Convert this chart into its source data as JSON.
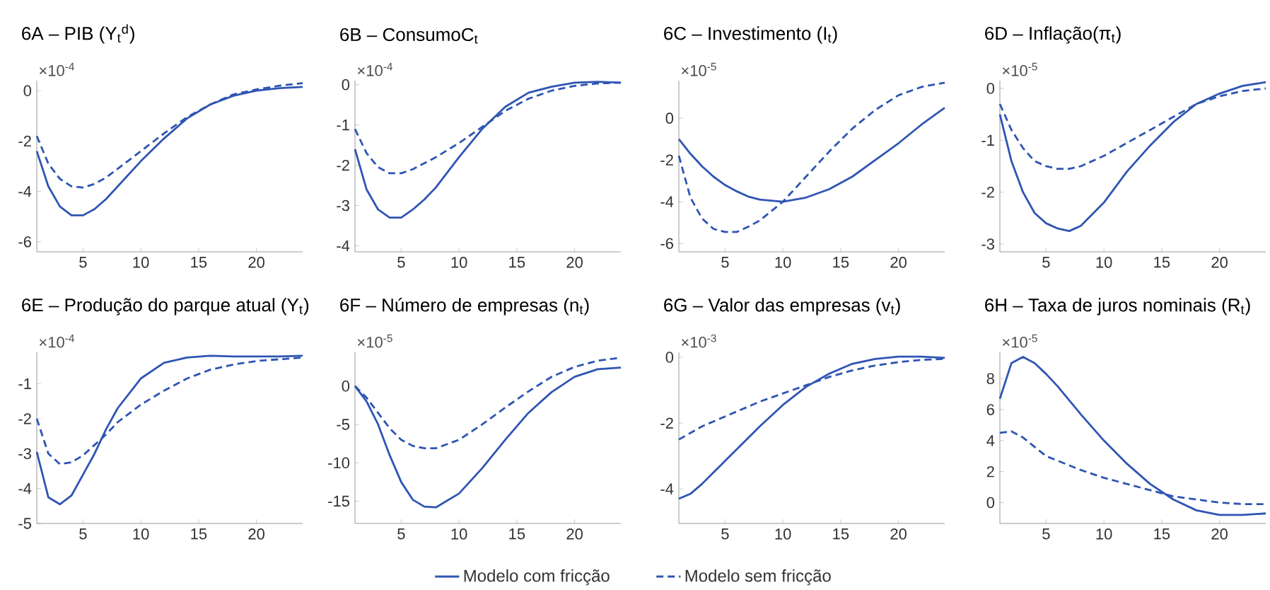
{
  "chart_data": [
    {
      "type": "line",
      "title": "6A – PIB (Y$_{t}$$^{d}$)",
      "annotations": [
        "×10$^{-4}$"
      ],
      "x": [
        1,
        2,
        3,
        4,
        5,
        6,
        7,
        8,
        10,
        12,
        14,
        16,
        18,
        20,
        22,
        24
      ],
      "xlim": [
        1,
        24
      ],
      "xticks": [
        5,
        10,
        15,
        20
      ],
      "ylim": [
        -6.4,
        0.4
      ],
      "yticks": [
        -6,
        -4,
        -2,
        0
      ],
      "series": [
        {
          "color": "#2f55b3",
          "line_style": "solid",
          "values": [
            -2.4,
            -3.8,
            -4.6,
            -4.95,
            -4.95,
            -4.7,
            -4.3,
            -3.8,
            -2.8,
            -1.9,
            -1.1,
            -0.55,
            -0.2,
            0.0,
            0.1,
            0.15
          ]
        },
        {
          "color": "#2f55b3",
          "line_style": "dashed",
          "values": [
            -1.8,
            -2.9,
            -3.5,
            -3.8,
            -3.85,
            -3.7,
            -3.45,
            -3.1,
            -2.4,
            -1.7,
            -1.05,
            -0.55,
            -0.15,
            0.05,
            0.2,
            0.3
          ]
        }
      ]
    },
    {
      "type": "line",
      "title": "6B – ConsumoC$_{t}$",
      "annotations": [
        "×10$^{-4}$"
      ],
      "x": [
        1,
        2,
        3,
        4,
        5,
        6,
        7,
        8,
        10,
        12,
        14,
        16,
        18,
        20,
        22,
        24
      ],
      "xlim": [
        1,
        24
      ],
      "xticks": [
        5,
        10,
        15,
        20
      ],
      "ylim": [
        -4.15,
        0.1
      ],
      "yticks": [
        -4,
        -3,
        -2,
        -1,
        0
      ],
      "series": [
        {
          "color": "#2f55b3",
          "line_style": "solid",
          "values": [
            -1.6,
            -2.6,
            -3.1,
            -3.3,
            -3.3,
            -3.1,
            -2.85,
            -2.55,
            -1.8,
            -1.1,
            -0.55,
            -0.2,
            -0.05,
            0.05,
            0.07,
            0.05
          ]
        },
        {
          "color": "#2f55b3",
          "line_style": "dashed",
          "values": [
            -1.1,
            -1.7,
            -2.05,
            -2.2,
            -2.2,
            -2.1,
            -1.95,
            -1.8,
            -1.45,
            -1.05,
            -0.65,
            -0.35,
            -0.15,
            -0.03,
            0.03,
            0.05
          ]
        }
      ]
    },
    {
      "type": "line",
      "title": "6C – Investimento (I$_{t}$)",
      "annotations": [
        "×10$^{-5}$"
      ],
      "x": [
        1,
        2,
        3,
        4,
        5,
        6,
        7,
        8,
        10,
        12,
        14,
        16,
        18,
        20,
        22,
        24
      ],
      "xlim": [
        1,
        24
      ],
      "xticks": [
        5,
        10,
        15,
        20
      ],
      "ylim": [
        -6.4,
        1.8
      ],
      "yticks": [
        -6,
        -4,
        -2,
        0
      ],
      "series": [
        {
          "color": "#2f55b3",
          "line_style": "solid",
          "values": [
            -1.0,
            -1.7,
            -2.3,
            -2.8,
            -3.2,
            -3.5,
            -3.75,
            -3.9,
            -4.0,
            -3.8,
            -3.4,
            -2.8,
            -2.0,
            -1.2,
            -0.3,
            0.5
          ]
        },
        {
          "color": "#2f55b3",
          "line_style": "dashed",
          "values": [
            -1.8,
            -3.8,
            -4.8,
            -5.3,
            -5.45,
            -5.45,
            -5.2,
            -4.9,
            -4.0,
            -2.8,
            -1.6,
            -0.5,
            0.4,
            1.1,
            1.5,
            1.7
          ]
        }
      ]
    },
    {
      "type": "line",
      "title": "6D – Inflação(π$_{t}$)",
      "annotations": [
        "×10$^{-5}$"
      ],
      "x": [
        1,
        2,
        3,
        4,
        5,
        6,
        7,
        8,
        10,
        12,
        14,
        16,
        18,
        20,
        22,
        24
      ],
      "xlim": [
        1,
        24
      ],
      "xticks": [
        5,
        10,
        15,
        20
      ],
      "ylim": [
        -3.15,
        0.15
      ],
      "yticks": [
        -3,
        -2,
        -1,
        0
      ],
      "series": [
        {
          "color": "#2f55b3",
          "line_style": "solid",
          "values": [
            -0.5,
            -1.4,
            -2.0,
            -2.4,
            -2.6,
            -2.7,
            -2.75,
            -2.65,
            -2.2,
            -1.6,
            -1.1,
            -0.65,
            -0.3,
            -0.1,
            0.05,
            0.12
          ]
        },
        {
          "color": "#2f55b3",
          "line_style": "dashed",
          "values": [
            -0.3,
            -0.8,
            -1.15,
            -1.4,
            -1.5,
            -1.55,
            -1.55,
            -1.5,
            -1.3,
            -1.05,
            -0.8,
            -0.55,
            -0.3,
            -0.15,
            -0.05,
            0.0
          ]
        }
      ]
    },
    {
      "type": "line",
      "title": "6E – Produção do parque atual (Y$_{t}$)",
      "annotations": [
        "×10$^{-4}$"
      ],
      "x": [
        1,
        2,
        3,
        4,
        5,
        6,
        7,
        8,
        10,
        12,
        14,
        16,
        18,
        20,
        22,
        24
      ],
      "xlim": [
        1,
        24
      ],
      "xticks": [
        5,
        10,
        15,
        20
      ],
      "ylim": [
        -5,
        -0.1
      ],
      "yticks": [
        -5,
        -4,
        -3,
        -2,
        -1
      ],
      "series": [
        {
          "color": "#2f55b3",
          "line_style": "solid",
          "values": [
            -2.95,
            -4.25,
            -4.45,
            -4.2,
            -3.6,
            -3.0,
            -2.3,
            -1.7,
            -0.85,
            -0.4,
            -0.25,
            -0.2,
            -0.22,
            -0.22,
            -0.22,
            -0.2
          ]
        },
        {
          "color": "#2f55b3",
          "line_style": "dashed",
          "values": [
            -2.0,
            -3.0,
            -3.3,
            -3.25,
            -3.05,
            -2.75,
            -2.45,
            -2.1,
            -1.6,
            -1.2,
            -0.85,
            -0.6,
            -0.45,
            -0.35,
            -0.3,
            -0.25
          ]
        }
      ]
    },
    {
      "type": "line",
      "title": "6F – Número de empresas (n$_{t}$)",
      "annotations": [
        "×10$^{-5}$"
      ],
      "x": [
        1,
        2,
        3,
        4,
        5,
        6,
        7,
        8,
        10,
        12,
        14,
        16,
        18,
        20,
        22,
        24
      ],
      "xlim": [
        1,
        24
      ],
      "xticks": [
        5,
        10,
        15,
        20
      ],
      "ylim": [
        -17.9,
        4.4
      ],
      "yticks": [
        -15,
        -10,
        -5,
        0
      ],
      "legend": "bottom",
      "series": [
        {
          "name": "Modelo com fricção",
          "color": "#2f55b3",
          "line_style": "solid",
          "values": [
            0,
            -2,
            -5,
            -9,
            -12.5,
            -14.8,
            -15.7,
            -15.8,
            -14,
            -10.7,
            -7,
            -3.5,
            -0.8,
            1.2,
            2.2,
            2.4
          ]
        },
        {
          "name": "Modelo sem fricção",
          "color": "#2f55b3",
          "line_style": "dashed",
          "values": [
            0,
            -1.5,
            -3.5,
            -5.5,
            -7,
            -7.8,
            -8.1,
            -8.1,
            -7,
            -5,
            -2.8,
            -0.7,
            1.2,
            2.5,
            3.3,
            3.7
          ]
        }
      ]
    },
    {
      "type": "line",
      "title": "6G – Valor das empresas (v$_{t}$)",
      "annotations": [
        "×10$^{-3}$"
      ],
      "x": [
        1,
        2,
        3,
        4,
        5,
        6,
        7,
        8,
        10,
        12,
        14,
        16,
        18,
        20,
        22,
        24
      ],
      "xlim": [
        1,
        24
      ],
      "xticks": [
        5,
        10,
        15,
        20
      ],
      "ylim": [
        -5.05,
        0.15
      ],
      "yticks": [
        -4,
        -2,
        0
      ],
      "series": [
        {
          "color": "#2f55b3",
          "line_style": "solid",
          "values": [
            -4.3,
            -4.15,
            -3.85,
            -3.5,
            -3.15,
            -2.8,
            -2.45,
            -2.1,
            -1.45,
            -0.9,
            -0.5,
            -0.2,
            -0.05,
            0.02,
            0.02,
            -0.02
          ]
        },
        {
          "color": "#2f55b3",
          "line_style": "dashed",
          "values": [
            -2.5,
            -2.3,
            -2.1,
            -1.95,
            -1.8,
            -1.65,
            -1.5,
            -1.35,
            -1.1,
            -0.85,
            -0.6,
            -0.4,
            -0.25,
            -0.15,
            -0.08,
            -0.05
          ]
        }
      ]
    },
    {
      "type": "line",
      "title": "6H – Taxa de juros nominais (R$_{t}$)",
      "annotations": [
        "×10$^{-5}$"
      ],
      "x": [
        1,
        2,
        3,
        4,
        5,
        6,
        7,
        8,
        10,
        12,
        14,
        16,
        18,
        20,
        22,
        24
      ],
      "xlim": [
        1,
        24
      ],
      "xticks": [
        5,
        10,
        15,
        20
      ],
      "ylim": [
        -1.35,
        9.7
      ],
      "yticks": [
        0,
        2,
        4,
        6,
        8
      ],
      "series": [
        {
          "color": "#2f55b3",
          "line_style": "solid",
          "values": [
            6.7,
            9.0,
            9.4,
            9.0,
            8.3,
            7.5,
            6.6,
            5.7,
            4.0,
            2.5,
            1.2,
            0.2,
            -0.5,
            -0.8,
            -0.8,
            -0.7
          ]
        },
        {
          "color": "#2f55b3",
          "line_style": "dashed",
          "values": [
            4.5,
            4.6,
            4.2,
            3.6,
            3.0,
            2.7,
            2.4,
            2.1,
            1.6,
            1.2,
            0.8,
            0.4,
            0.2,
            0.0,
            -0.1,
            -0.1
          ]
        }
      ]
    }
  ]
}
